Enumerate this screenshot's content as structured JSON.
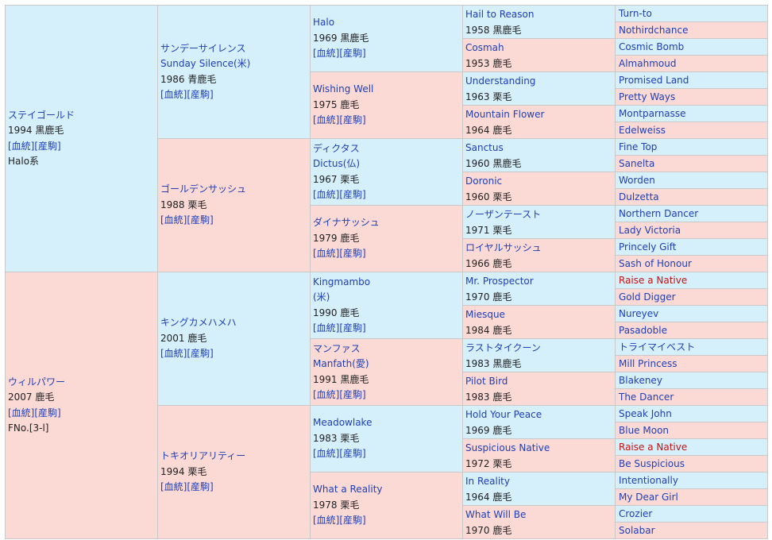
{
  "link_labels": "[血統][産駒]",
  "g1": [
    {
      "sex": "m",
      "name": "ステイゴールド",
      "info": "1994 黒鹿毛",
      "extra": "Halo系"
    },
    {
      "sex": "f",
      "name": "ウィルパワー",
      "info": "2007 鹿毛",
      "extra": "FNo.[3-l]"
    }
  ],
  "g2": [
    {
      "sex": "m",
      "name": "サンデーサイレンス",
      "name2": "Sunday Silence(米)",
      "info": "1986 青鹿毛"
    },
    {
      "sex": "f",
      "name": "ゴールデンサッシュ",
      "info": "1988 栗毛"
    },
    {
      "sex": "m",
      "name": "キングカメハメハ",
      "info": "2001 鹿毛"
    },
    {
      "sex": "f",
      "name": "トキオリアリティー",
      "info": "1994 栗毛"
    }
  ],
  "g3": [
    {
      "sex": "m",
      "name": "Halo",
      "info": "1969 黒鹿毛"
    },
    {
      "sex": "f",
      "name": "Wishing Well",
      "info": "1975 鹿毛"
    },
    {
      "sex": "m",
      "name": "ディクタス",
      "name2": "Dictus(仏)",
      "info": "1967 栗毛"
    },
    {
      "sex": "f",
      "name": "ダイナサッシュ",
      "info": "1979 鹿毛"
    },
    {
      "sex": "m",
      "name": "Kingmambo",
      "name2": "(米)",
      "info": "1990 鹿毛"
    },
    {
      "sex": "f",
      "name": "マンファス",
      "name2": "Manfath(愛)",
      "info": "1991 黒鹿毛"
    },
    {
      "sex": "m",
      "name": "Meadowlake",
      "info": "1983 栗毛"
    },
    {
      "sex": "f",
      "name": "What a Reality",
      "info": "1978 栗毛"
    }
  ],
  "g4": [
    {
      "sex": "m",
      "name": "Hail to Reason",
      "info": "1958 黒鹿毛"
    },
    {
      "sex": "f",
      "name": "Cosmah",
      "info": "1953 鹿毛"
    },
    {
      "sex": "m",
      "name": "Understanding",
      "info": "1963 栗毛"
    },
    {
      "sex": "f",
      "name": "Mountain Flower",
      "info": "1964 鹿毛"
    },
    {
      "sex": "m",
      "name": "Sanctus",
      "info": "1960 黒鹿毛"
    },
    {
      "sex": "f",
      "name": "Doronic",
      "info": "1960 栗毛"
    },
    {
      "sex": "m",
      "name": "ノーザンテースト",
      "info": "1971 栗毛"
    },
    {
      "sex": "f",
      "name": "ロイヤルサッシュ",
      "info": "1966 鹿毛"
    },
    {
      "sex": "m",
      "name": "Mr. Prospector",
      "info": "1970 鹿毛"
    },
    {
      "sex": "f",
      "name": "Miesque",
      "info": "1984 鹿毛"
    },
    {
      "sex": "m",
      "name": "ラストタイクーン",
      "info": "1983 黒鹿毛"
    },
    {
      "sex": "f",
      "name": "Pilot Bird",
      "info": "1983 鹿毛"
    },
    {
      "sex": "m",
      "name": "Hold Your Peace",
      "info": "1969 鹿毛"
    },
    {
      "sex": "f",
      "name": "Suspicious Native",
      "info": "1972 栗毛"
    },
    {
      "sex": "m",
      "name": "In Reality",
      "info": "1964 鹿毛"
    },
    {
      "sex": "f",
      "name": "What Will Be",
      "info": "1970 鹿毛"
    }
  ],
  "g5": [
    {
      "sex": "m",
      "name": "Turn-to"
    },
    {
      "sex": "f",
      "name": "Nothirdchance"
    },
    {
      "sex": "m",
      "name": "Cosmic Bomb"
    },
    {
      "sex": "f",
      "name": "Almahmoud"
    },
    {
      "sex": "m",
      "name": "Promised Land"
    },
    {
      "sex": "f",
      "name": "Pretty Ways"
    },
    {
      "sex": "m",
      "name": "Montparnasse"
    },
    {
      "sex": "f",
      "name": "Edelweiss"
    },
    {
      "sex": "m",
      "name": "Fine Top"
    },
    {
      "sex": "f",
      "name": "Sanelta"
    },
    {
      "sex": "m",
      "name": "Worden"
    },
    {
      "sex": "f",
      "name": "Dulzetta"
    },
    {
      "sex": "m",
      "name": "Northern Dancer"
    },
    {
      "sex": "f",
      "name": "Lady Victoria"
    },
    {
      "sex": "m",
      "name": "Princely Gift"
    },
    {
      "sex": "f",
      "name": "Sash of Honour"
    },
    {
      "sex": "m",
      "name": "Raise a Native",
      "highlight": true
    },
    {
      "sex": "f",
      "name": "Gold Digger"
    },
    {
      "sex": "m",
      "name": "Nureyev"
    },
    {
      "sex": "f",
      "name": "Pasadoble"
    },
    {
      "sex": "m",
      "name": "トライマイベスト"
    },
    {
      "sex": "f",
      "name": "Mill Princess"
    },
    {
      "sex": "m",
      "name": "Blakeney"
    },
    {
      "sex": "f",
      "name": "The Dancer"
    },
    {
      "sex": "m",
      "name": "Speak John"
    },
    {
      "sex": "f",
      "name": "Blue Moon"
    },
    {
      "sex": "m",
      "name": "Raise a Native",
      "highlight": true
    },
    {
      "sex": "f",
      "name": "Be Suspicious"
    },
    {
      "sex": "m",
      "name": "Intentionally"
    },
    {
      "sex": "f",
      "name": "My Dear Girl"
    },
    {
      "sex": "m",
      "name": "Crozier"
    },
    {
      "sex": "f",
      "name": "Solabar"
    }
  ]
}
